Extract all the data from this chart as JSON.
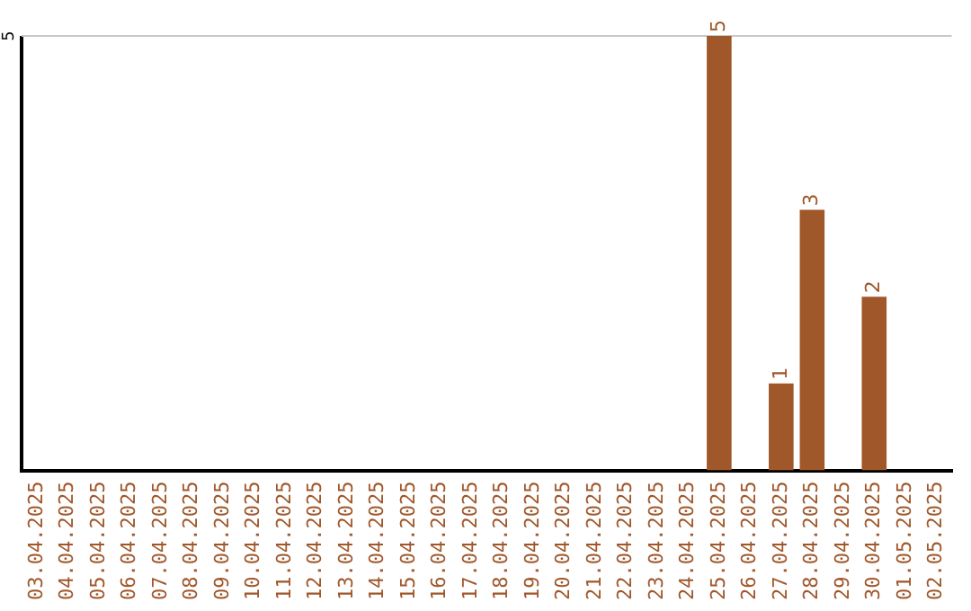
{
  "chart_data": {
    "type": "bar",
    "ylim": [
      0,
      5
    ],
    "data_labels": true,
    "categories": [
      "03.04.2025",
      "04.04.2025",
      "05.04.2025",
      "06.04.2025",
      "07.04.2025",
      "08.04.2025",
      "09.04.2025",
      "10.04.2025",
      "11.04.2025",
      "12.04.2025",
      "13.04.2025",
      "14.04.2025",
      "15.04.2025",
      "16.04.2025",
      "17.04.2025",
      "18.04.2025",
      "19.04.2025",
      "20.04.2025",
      "21.04.2025",
      "22.04.2025",
      "23.04.2025",
      "24.04.2025",
      "25.04.2025",
      "26.04.2025",
      "27.04.2025",
      "28.04.2025",
      "29.04.2025",
      "30.04.2025",
      "01.05.2025",
      "02.05.2025"
    ],
    "values": [
      null,
      null,
      null,
      null,
      null,
      null,
      null,
      null,
      null,
      null,
      null,
      null,
      null,
      null,
      null,
      null,
      null,
      null,
      null,
      null,
      null,
      null,
      5,
      null,
      1,
      3,
      null,
      2,
      null,
      null
    ],
    "ref_lines": [
      {
        "axis": "y",
        "value": 5,
        "label": "5",
        "color": "#c8c8c8"
      }
    ],
    "color": "#a0572a",
    "legend": false
  }
}
